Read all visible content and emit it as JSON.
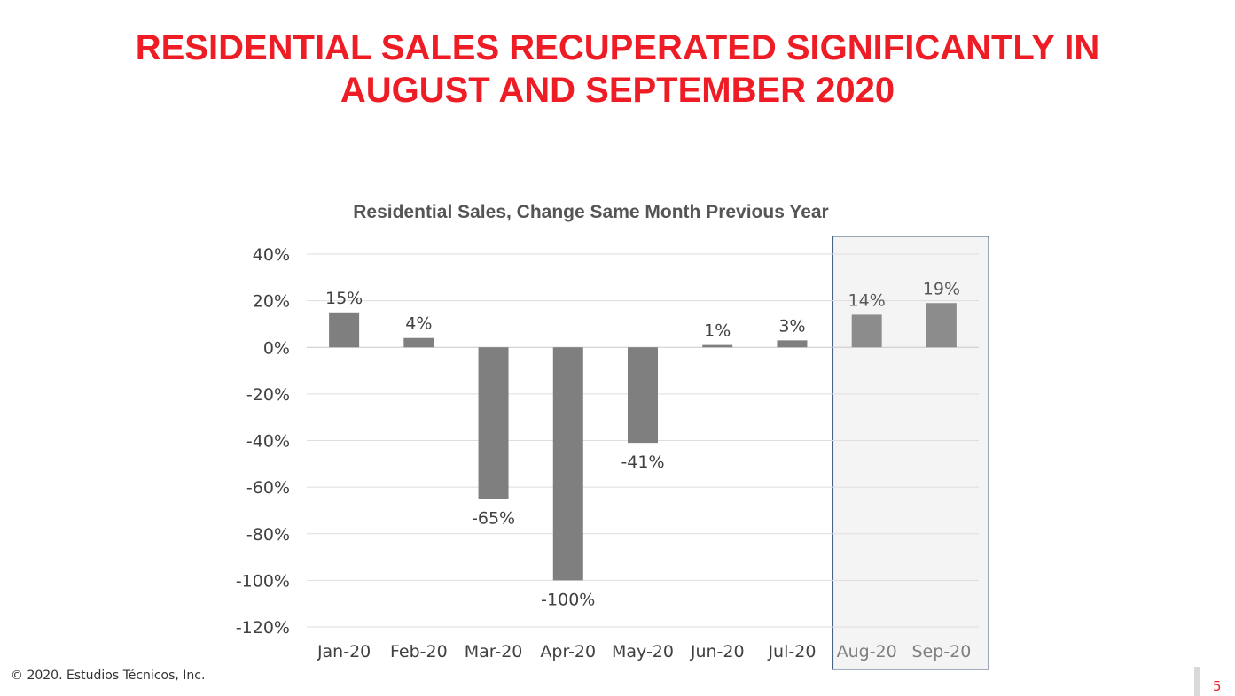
{
  "slide": {
    "headline_line1": "RESIDENTIAL SALES RECUPERATED SIGNIFICANTLY IN",
    "headline_line2": "AUGUST AND SEPTEMBER 2020",
    "copyright": "© 2020. Estudios Técnicos, Inc.",
    "page_number": "5",
    "accent_color": "#ee1c25"
  },
  "chart_data": {
    "type": "bar",
    "title": "Residential Sales, Change Same Month Previous Year",
    "xlabel": "",
    "ylabel": "",
    "categories": [
      "Jan-20",
      "Feb-20",
      "Mar-20",
      "Apr-20",
      "May-20",
      "Jun-20",
      "Jul-20",
      "Aug-20",
      "Sep-20"
    ],
    "values": [
      15,
      4,
      -65,
      -100,
      -41,
      1,
      3,
      14,
      19
    ],
    "data_labels": [
      "15%",
      "4%",
      "-65%",
      "-100%",
      "-41%",
      "1%",
      "3%",
      "14%",
      "19%"
    ],
    "y_ticks": [
      40,
      20,
      0,
      -20,
      -40,
      -60,
      -80,
      -100,
      -120
    ],
    "y_tick_labels": [
      "40%",
      "20%",
      "0%",
      "-20%",
      "-40%",
      "-60%",
      "-80%",
      "-100%",
      "-120%"
    ],
    "ylim": [
      -120,
      40
    ],
    "grid": true,
    "highlighted_categories": [
      "Aug-20",
      "Sep-20"
    ],
    "bar_color": "#7f7f7f",
    "highlight_bar_color": "#8c8c8c",
    "highlight_fill": "#f4f4f4",
    "highlight_border": "#3e5a7e"
  }
}
